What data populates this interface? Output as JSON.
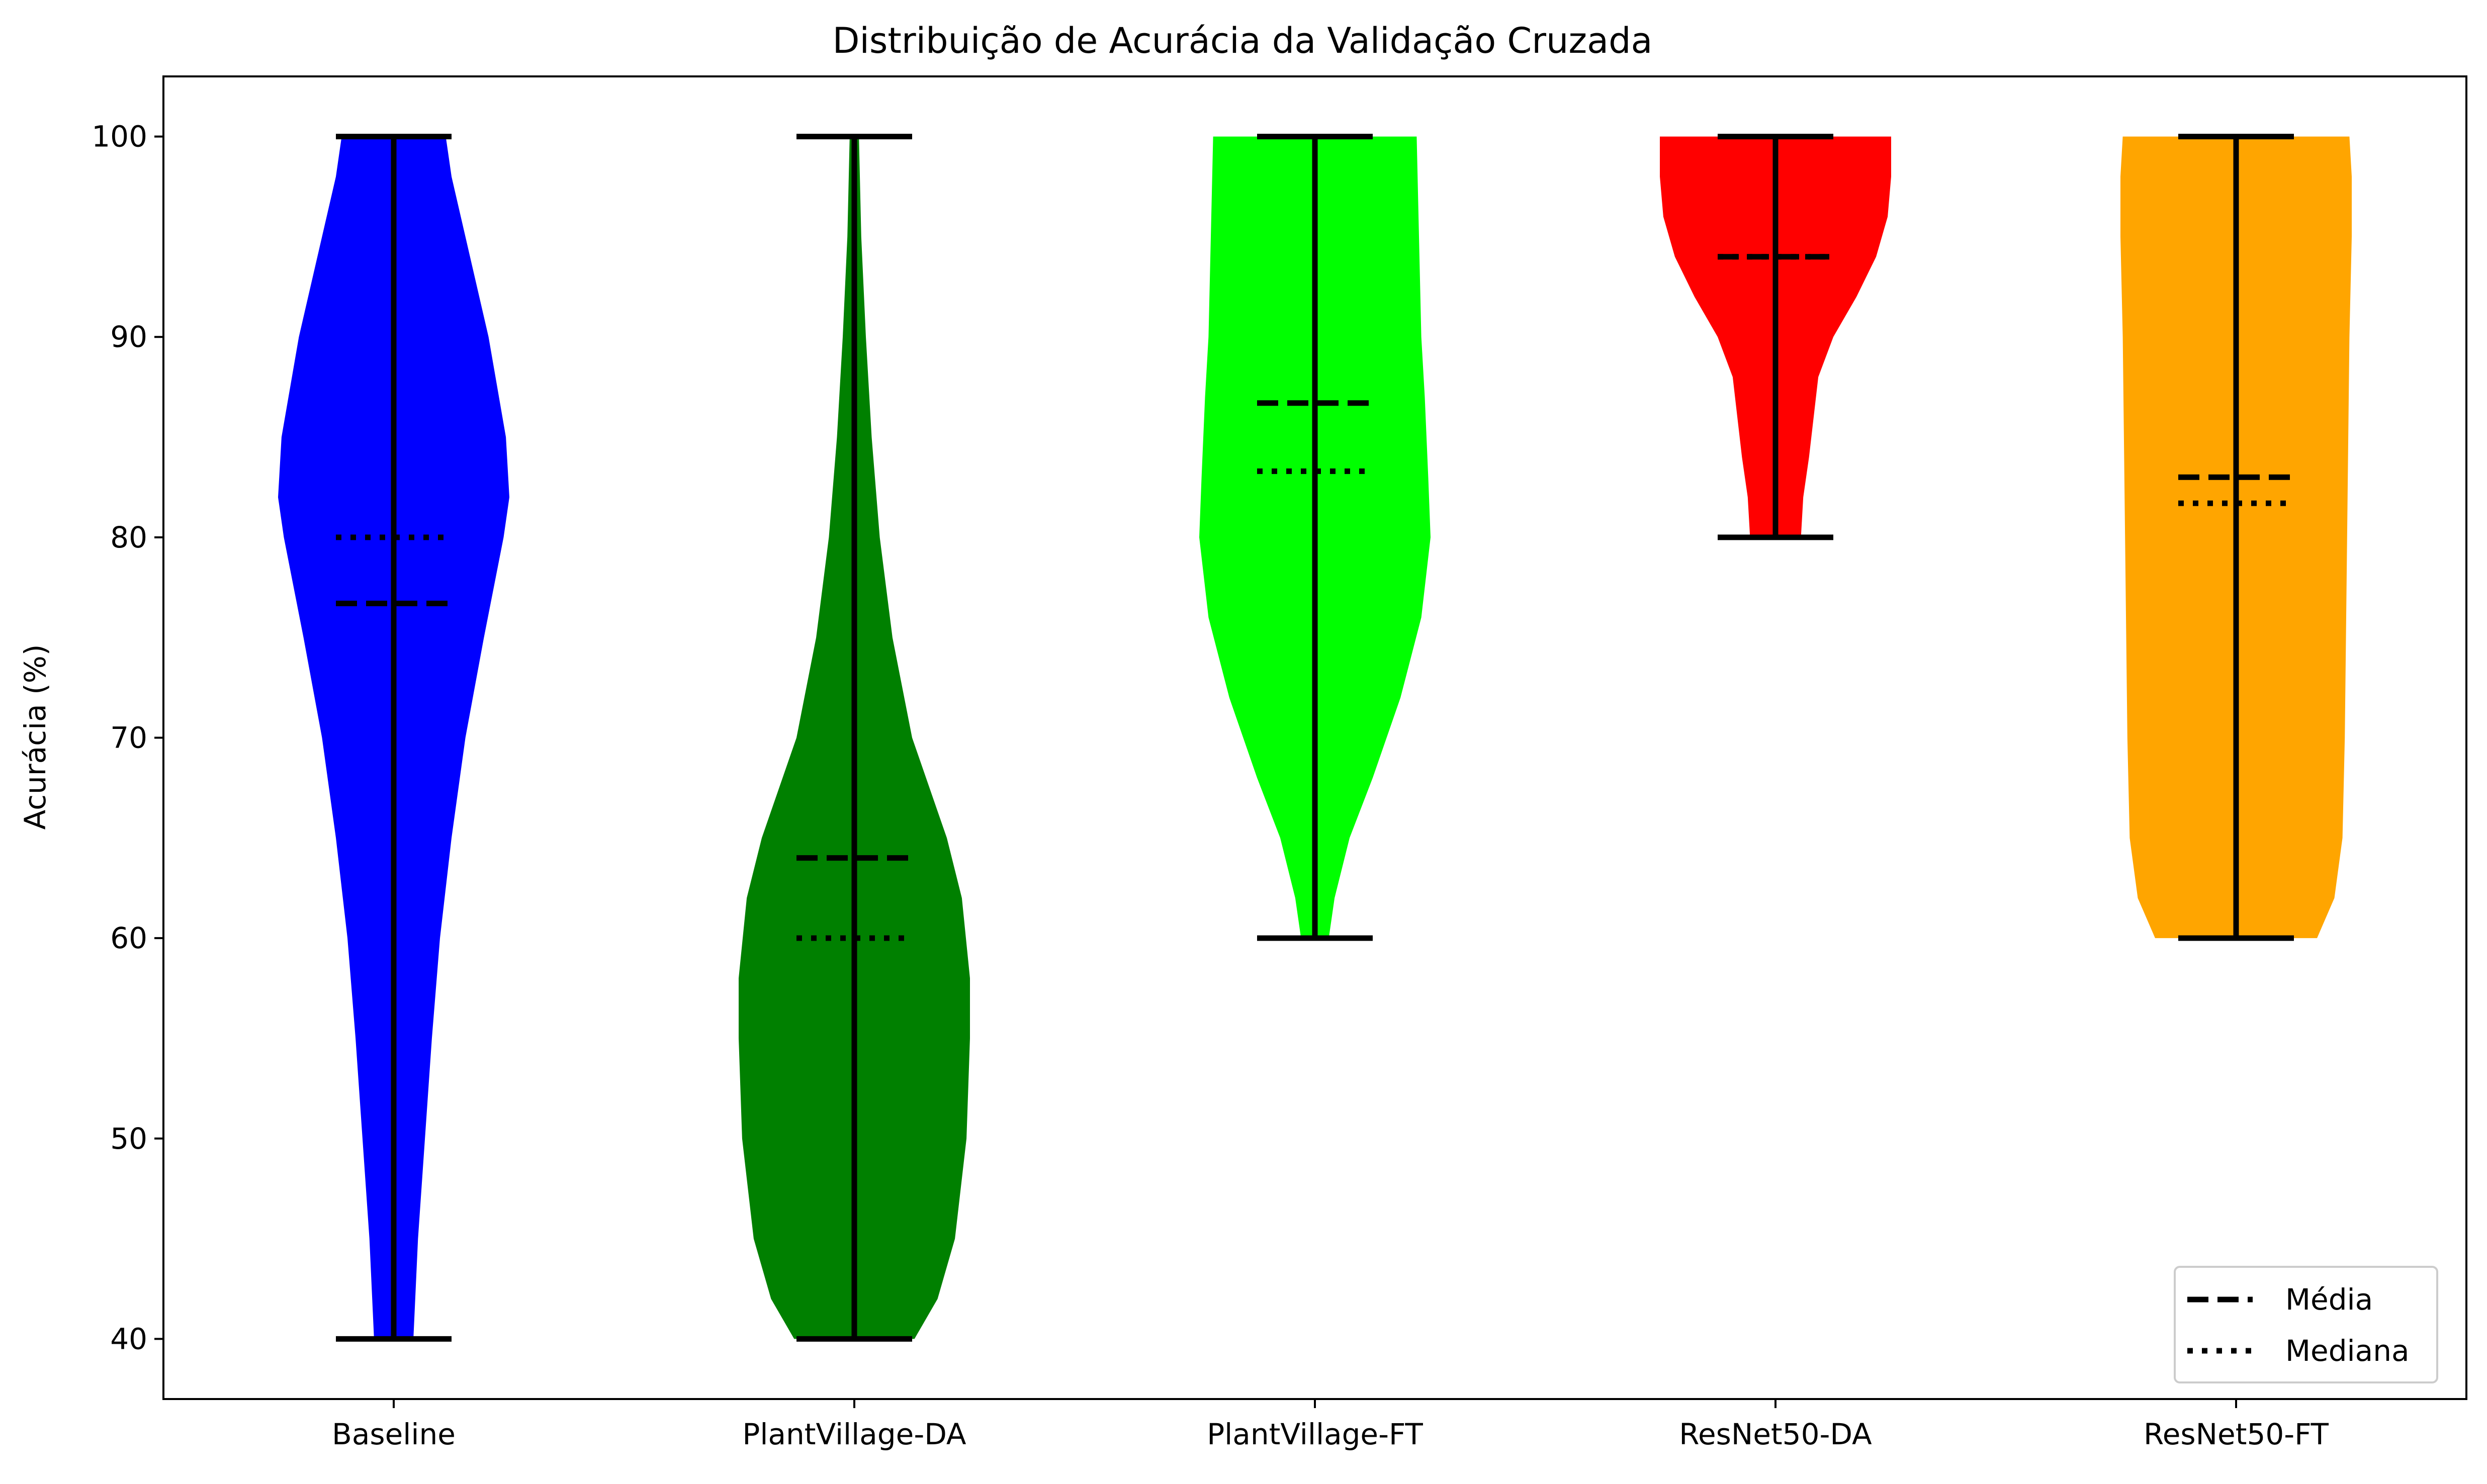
{
  "chart_data": {
    "type": "violin",
    "title": "Distribuição de Acurácia da Validação Cruzada",
    "xlabel": "",
    "ylabel": "Acurácia (%)",
    "ylim": [
      37,
      103
    ],
    "yticks": [
      40,
      50,
      60,
      70,
      80,
      90,
      100
    ],
    "ytick_labels": [
      "40",
      "50",
      "60",
      "70",
      "80",
      "90",
      "100"
    ],
    "grid": false,
    "categories": [
      "Baseline",
      "PlantVillage-DA",
      "PlantVillage-FT",
      "ResNet50-DA",
      "ResNet50-FT"
    ],
    "series": [
      {
        "category": "Baseline",
        "color": "#0000ff",
        "min": 40,
        "max": 100,
        "mean": 76.7,
        "median": 80,
        "density_profile": [
          [
            40,
            0.17
          ],
          [
            45,
            0.21
          ],
          [
            50,
            0.27
          ],
          [
            55,
            0.33
          ],
          [
            60,
            0.4
          ],
          [
            65,
            0.5
          ],
          [
            70,
            0.62
          ],
          [
            75,
            0.78
          ],
          [
            80,
            0.95
          ],
          [
            82,
            1.0
          ],
          [
            85,
            0.97
          ],
          [
            90,
            0.82
          ],
          [
            95,
            0.62
          ],
          [
            98,
            0.5
          ],
          [
            100,
            0.45
          ]
        ]
      },
      {
        "category": "PlantVillage-DA",
        "color": "#008000",
        "min": 40,
        "max": 100,
        "mean": 64,
        "median": 60,
        "density_profile": [
          [
            40,
            0.52
          ],
          [
            42,
            0.72
          ],
          [
            45,
            0.87
          ],
          [
            50,
            0.97
          ],
          [
            55,
            1.0
          ],
          [
            58,
            1.0
          ],
          [
            62,
            0.93
          ],
          [
            65,
            0.8
          ],
          [
            70,
            0.5
          ],
          [
            75,
            0.33
          ],
          [
            80,
            0.22
          ],
          [
            85,
            0.15
          ],
          [
            90,
            0.1
          ],
          [
            95,
            0.06
          ],
          [
            100,
            0.04
          ]
        ]
      },
      {
        "category": "PlantVillage-FT",
        "color": "#00ff00",
        "min": 60,
        "max": 100,
        "mean": 86.7,
        "median": 83.3,
        "density_profile": [
          [
            60,
            0.12
          ],
          [
            62,
            0.17
          ],
          [
            65,
            0.3
          ],
          [
            68,
            0.5
          ],
          [
            72,
            0.74
          ],
          [
            76,
            0.92
          ],
          [
            80,
            1.0
          ],
          [
            83,
            0.98
          ],
          [
            87,
            0.95
          ],
          [
            90,
            0.92
          ],
          [
            95,
            0.9
          ],
          [
            100,
            0.88
          ]
        ]
      },
      {
        "category": "ResNet50-DA",
        "color": "#ff0000",
        "min": 80,
        "max": 100,
        "mean": 94,
        "median": 94,
        "density_profile": [
          [
            80,
            0.22
          ],
          [
            82,
            0.24
          ],
          [
            84,
            0.29
          ],
          [
            86,
            0.33
          ],
          [
            88,
            0.37
          ],
          [
            90,
            0.5
          ],
          [
            92,
            0.7
          ],
          [
            94,
            0.87
          ],
          [
            96,
            0.97
          ],
          [
            98,
            1.0
          ],
          [
            100,
            1.0
          ]
        ]
      },
      {
        "category": "ResNet50-FT",
        "color": "#ffa500",
        "min": 60,
        "max": 100,
        "mean": 83,
        "median": 81.7,
        "density_profile": [
          [
            60,
            0.7
          ],
          [
            62,
            0.85
          ],
          [
            65,
            0.92
          ],
          [
            70,
            0.94
          ],
          [
            75,
            0.95
          ],
          [
            80,
            0.96
          ],
          [
            85,
            0.97
          ],
          [
            90,
            0.98
          ],
          [
            95,
            1.0
          ],
          [
            98,
            1.0
          ],
          [
            100,
            0.98
          ]
        ]
      }
    ],
    "legend": {
      "placement": "bottom-right",
      "entries": [
        {
          "label": "Média",
          "linestyle": "dashed"
        },
        {
          "label": "Mediana",
          "linestyle": "dotted"
        }
      ]
    }
  }
}
